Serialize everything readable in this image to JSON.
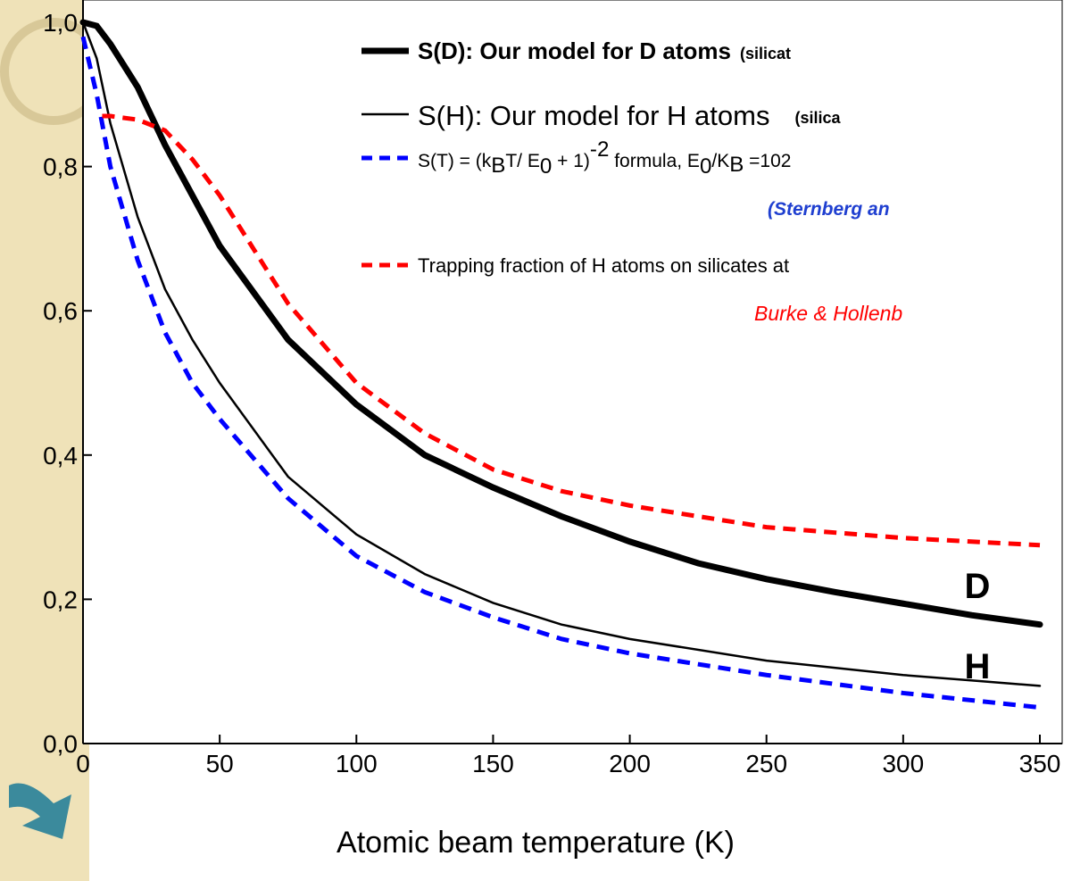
{
  "chart_data": {
    "type": "line",
    "x_label": "Atomic beam temperature (K)",
    "xlim": [
      0,
      350
    ],
    "xticks": [
      0,
      50,
      100,
      150,
      200,
      250,
      300,
      350
    ],
    "ylim": [
      0,
      1
    ],
    "yticks": [
      {
        "value": 0,
        "label": "0,0"
      },
      {
        "value": 0.2,
        "label": "0,2"
      },
      {
        "value": 0.4,
        "label": "0,4"
      },
      {
        "value": 0.6,
        "label": "0,6"
      },
      {
        "value": 0.8,
        "label": "0,8"
      },
      {
        "value": 1,
        "label": "1,0"
      }
    ],
    "series": [
      {
        "name": "S(D):  Our model for D atoms",
        "note": "(silicat",
        "color": "#000000",
        "style": "thick",
        "x": [
          0,
          5,
          10,
          20,
          30,
          40,
          50,
          75,
          100,
          125,
          150,
          175,
          200,
          225,
          250,
          275,
          300,
          325,
          350
        ],
        "values": [
          1.0,
          0.995,
          0.97,
          0.91,
          0.83,
          0.76,
          0.69,
          0.56,
          0.47,
          0.4,
          0.355,
          0.315,
          0.28,
          0.25,
          0.228,
          0.21,
          0.194,
          0.178,
          0.165
        ]
      },
      {
        "name": "S(H): Our model for H atoms",
        "note": "(silica",
        "color": "#000000",
        "style": "thin",
        "x": [
          0,
          5,
          10,
          20,
          30,
          40,
          50,
          75,
          100,
          125,
          150,
          175,
          200,
          250,
          300,
          350
        ],
        "values": [
          1.0,
          0.95,
          0.86,
          0.73,
          0.63,
          0.56,
          0.5,
          0.37,
          0.29,
          0.235,
          0.195,
          0.165,
          0.145,
          0.115,
          0.095,
          0.08
        ]
      },
      {
        "name": [
          "S(T) = (k",
          "B",
          "T/ E",
          "0",
          " + 1)",
          "-2",
          " formula, E",
          "0",
          "/K",
          "B",
          " =102"
        ],
        "note": "(Sternberg an",
        "color": "#0000ff",
        "style": "dashed",
        "x": [
          0,
          5,
          10,
          20,
          30,
          40,
          50,
          75,
          100,
          125,
          150,
          175,
          200,
          250,
          300,
          350
        ],
        "values": [
          0.98,
          0.9,
          0.8,
          0.67,
          0.57,
          0.5,
          0.45,
          0.34,
          0.26,
          0.21,
          0.175,
          0.145,
          0.125,
          0.095,
          0.07,
          0.05
        ]
      },
      {
        "name": "Trapping fraction of H atoms on silicates at",
        "note": "Burke & Hollenb",
        "color": "#ff0000",
        "style": "dashed",
        "x": [
          7,
          10,
          20,
          30,
          40,
          50,
          60,
          75,
          100,
          125,
          150,
          175,
          200,
          250,
          300,
          350
        ],
        "values": [
          0.87,
          0.87,
          0.865,
          0.85,
          0.81,
          0.76,
          0.7,
          0.61,
          0.5,
          0.43,
          0.38,
          0.35,
          0.33,
          0.3,
          0.285,
          0.275
        ]
      }
    ],
    "annotations": [
      "D",
      "H"
    ]
  }
}
